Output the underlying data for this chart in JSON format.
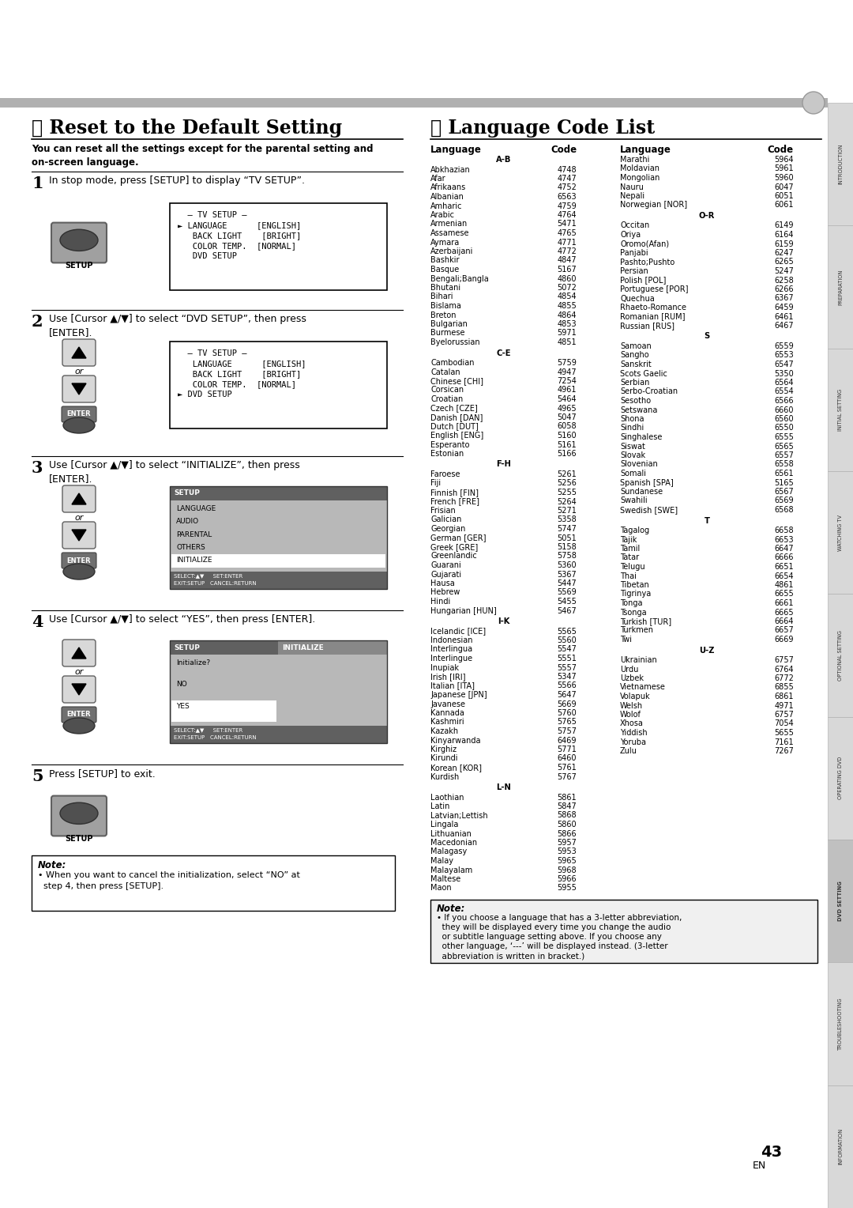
{
  "bg_color": "#ffffff",
  "sidebar_labels": [
    "INTRODUCTION",
    "PREPARATION",
    "INITIAL SETTING",
    "WATCHING TV",
    "OPTIONAL SETTING",
    "OPERATING DVD",
    "DVD SETTING",
    "TROUBLESHOOTING",
    "INFORMATION"
  ],
  "left_section_title": "☑ Reset to the Default Setting",
  "left_subtitle": "You can reset all the settings except for the parental setting and\non-screen language.",
  "right_section_title": "☑ Language Code List",
  "step1_text": "In stop mode, press [SETUP] to display “TV SETUP”.",
  "step2_text": "Use [Cursor ▲/▼] to select “DVD SETUP”, then press\n[ENTER].",
  "step3_text": "Use [Cursor ▲/▼] to select “INITIALIZE”, then press\n[ENTER].",
  "step4_text": "Use [Cursor ▲/▼] to select “YES”, then press [ENTER].",
  "step5_text": "Press [SETUP] to exit.",
  "screen1": [
    "  – TV SETUP –",
    "► LANGUAGE      [ENGLISH]",
    "   BACK LIGHT    [BRIGHT]",
    "   COLOR TEMP.  [NORMAL]",
    "   DVD SETUP"
  ],
  "screen2": [
    "  – TV SETUP –",
    "   LANGUAGE      [ENGLISH]",
    "   BACK LIGHT    [BRIGHT]",
    "   COLOR TEMP.  [NORMAL]",
    "► DVD SETUP"
  ],
  "screen3_title": "SETUP",
  "screen3_items": [
    "LANGUAGE",
    "AUDIO",
    "PARENTAL",
    "OTHERS",
    "INITIALIZE"
  ],
  "screen3_highlight": 4,
  "screen3_bottom": [
    "SELECT:▲▼     SET:ENTER",
    "EXIT:SETUP   CANCEL:RETURN"
  ],
  "screen4_header": [
    "SETUP",
    "INITIALIZE"
  ],
  "screen4_items": [
    "Initialize?",
    "NO",
    "YES"
  ],
  "screen4_highlight": 2,
  "screen4_bottom": [
    "SELECT:▲▼     SET:ENTER",
    "EXIT:SETUP   CANCEL:RETURN"
  ],
  "note_left": "Note:\n• When you want to cancel the initialization, select “NO” at\n  step 4, then press [SETUP].",
  "lang_header_left": "Language",
  "lang_header_code": "Code",
  "lang_ab_label": "A-B",
  "lang_ce_label": "C-E",
  "lang_fh_label": "F-H",
  "lang_ik_label": "I-K",
  "lang_ln_label": "L-N",
  "lang_or_label": "O-R",
  "lang_s_label": "S",
  "lang_t_label": "T",
  "lang_uz_label": "U-Z",
  "languages_ab": [
    [
      "Abkhazian",
      "4748"
    ],
    [
      "Afar",
      "4747"
    ],
    [
      "Afrikaans",
      "4752"
    ],
    [
      "Albanian",
      "6563"
    ],
    [
      "Amharic",
      "4759"
    ],
    [
      "Arabic",
      "4764"
    ],
    [
      "Armenian",
      "5471"
    ],
    [
      "Assamese",
      "4765"
    ],
    [
      "Aymara",
      "4771"
    ],
    [
      "Azerbaijani",
      "4772"
    ],
    [
      "Bashkir",
      "4847"
    ],
    [
      "Basque",
      "5167"
    ],
    [
      "Bengali;Bangla",
      "4860"
    ],
    [
      "Bhutani",
      "5072"
    ],
    [
      "Bihari",
      "4854"
    ],
    [
      "Bislama",
      "4855"
    ],
    [
      "Breton",
      "4864"
    ],
    [
      "Bulgarian",
      "4853"
    ],
    [
      "Burmese",
      "5971"
    ],
    [
      "Byelorussian",
      "4851"
    ]
  ],
  "languages_ce": [
    [
      "Cambodian",
      "5759"
    ],
    [
      "Catalan",
      "4947"
    ],
    [
      "Chinese [CHI]",
      "7254"
    ],
    [
      "Corsican",
      "4961"
    ],
    [
      "Croatian",
      "5464"
    ],
    [
      "Czech [CZE]",
      "4965"
    ],
    [
      "Danish [DAN]",
      "5047"
    ],
    [
      "Dutch [DUT]",
      "6058"
    ],
    [
      "English [ENG]",
      "5160"
    ],
    [
      "Esperanto",
      "5161"
    ],
    [
      "Estonian",
      "5166"
    ]
  ],
  "languages_fh": [
    [
      "Faroese",
      "5261"
    ],
    [
      "Fiji",
      "5256"
    ],
    [
      "Finnish [FIN]",
      "5255"
    ],
    [
      "French [FRE]",
      "5264"
    ],
    [
      "Frisian",
      "5271"
    ],
    [
      "Galician",
      "5358"
    ],
    [
      "Georgian",
      "5747"
    ],
    [
      "German [GER]",
      "5051"
    ],
    [
      "Greek [GRE]",
      "5158"
    ],
    [
      "Greenlandic",
      "5758"
    ],
    [
      "Guarani",
      "5360"
    ],
    [
      "Gujarati",
      "5367"
    ],
    [
      "Hausa",
      "5447"
    ],
    [
      "Hebrew",
      "5569"
    ],
    [
      "Hindi",
      "5455"
    ],
    [
      "Hungarian [HUN]",
      "5467"
    ]
  ],
  "languages_ik": [
    [
      "Icelandic [ICE]",
      "5565"
    ],
    [
      "Indonesian",
      "5560"
    ],
    [
      "Interlingua",
      "5547"
    ],
    [
      "Interlingue",
      "5551"
    ],
    [
      "Inupiak",
      "5557"
    ],
    [
      "Irish [IRI]",
      "5347"
    ],
    [
      "Italian [ITA]",
      "5566"
    ],
    [
      "Japanese [JPN]",
      "5647"
    ],
    [
      "Javanese",
      "5669"
    ],
    [
      "Kannada",
      "5760"
    ],
    [
      "Kashmiri",
      "5765"
    ],
    [
      "Kazakh",
      "5757"
    ],
    [
      "Kinyarwanda",
      "6469"
    ],
    [
      "Kirghiz",
      "5771"
    ],
    [
      "Kirundi",
      "6460"
    ],
    [
      "Korean [KOR]",
      "5761"
    ],
    [
      "Kurdish",
      "5767"
    ]
  ],
  "languages_ln": [
    [
      "Laothian",
      "5861"
    ],
    [
      "Latin",
      "5847"
    ],
    [
      "Latvian;Lettish",
      "5868"
    ],
    [
      "Lingala",
      "5860"
    ],
    [
      "Lithuanian",
      "5866"
    ],
    [
      "Macedonian",
      "5957"
    ],
    [
      "Malagasy",
      "5953"
    ],
    [
      "Malay",
      "5965"
    ],
    [
      "Malayalam",
      "5968"
    ],
    [
      "Maltese",
      "5966"
    ],
    [
      "Maon",
      "5955"
    ]
  ],
  "languages_mr": [
    [
      "Marathi",
      "5964"
    ],
    [
      "Moldavian",
      "5961"
    ],
    [
      "Mongolian",
      "5960"
    ],
    [
      "Nauru",
      "6047"
    ],
    [
      "Nepali",
      "6051"
    ],
    [
      "Norwegian [NOR]",
      "6061"
    ]
  ],
  "languages_or": [
    [
      "Occitan",
      "6149"
    ],
    [
      "Oriya",
      "6164"
    ],
    [
      "Oromo(Afan)",
      "6159"
    ],
    [
      "Panjabi",
      "6247"
    ],
    [
      "Pashto;Pushto",
      "6265"
    ],
    [
      "Persian",
      "5247"
    ],
    [
      "Polish [POL]",
      "6258"
    ],
    [
      "Portuguese [POR]",
      "6266"
    ],
    [
      "Quechua",
      "6367"
    ],
    [
      "Rhaeto-Romance",
      "6459"
    ],
    [
      "Romanian [RUM]",
      "6461"
    ],
    [
      "Russian [RUS]",
      "6467"
    ]
  ],
  "languages_s": [
    [
      "Samoan",
      "6559"
    ],
    [
      "Sangho",
      "6553"
    ],
    [
      "Sanskrit",
      "6547"
    ],
    [
      "Scots Gaelic",
      "5350"
    ],
    [
      "Serbian",
      "6564"
    ],
    [
      "Serbo-Croatian",
      "6554"
    ],
    [
      "Sesotho",
      "6566"
    ],
    [
      "Setswana",
      "6660"
    ],
    [
      "Shona",
      "6560"
    ],
    [
      "Sindhi",
      "6550"
    ],
    [
      "Singhalese",
      "6555"
    ],
    [
      "Siswat",
      "6565"
    ],
    [
      "Slovak",
      "6557"
    ],
    [
      "Slovenian",
      "6558"
    ],
    [
      "Somali",
      "6561"
    ],
    [
      "Spanish [SPA]",
      "5165"
    ],
    [
      "Sundanese",
      "6567"
    ],
    [
      "Swahili",
      "6569"
    ],
    [
      "Swedish [SWE]",
      "6568"
    ]
  ],
  "languages_t": [
    [
      "Tagalog",
      "6658"
    ],
    [
      "Tajik",
      "6653"
    ],
    [
      "Tamil",
      "6647"
    ],
    [
      "Tatar",
      "6666"
    ],
    [
      "Telugu",
      "6651"
    ],
    [
      "Thai",
      "6654"
    ],
    [
      "Tibetan",
      "4861"
    ],
    [
      "Tigrinya",
      "6655"
    ],
    [
      "Tonga",
      "6661"
    ],
    [
      "Tsonga",
      "6665"
    ],
    [
      "Turkish [TUR]",
      "6664"
    ],
    [
      "Turkmen",
      "6657"
    ],
    [
      "Twi",
      "6669"
    ]
  ],
  "languages_uz": [
    [
      "Ukrainian",
      "6757"
    ],
    [
      "Urdu",
      "6764"
    ],
    [
      "Uzbek",
      "6772"
    ],
    [
      "Vietnamese",
      "6855"
    ],
    [
      "Volapuk",
      "6861"
    ],
    [
      "Welsh",
      "4971"
    ],
    [
      "Wolof",
      "6757"
    ],
    [
      "Xhosa",
      "7054"
    ],
    [
      "Yiddish",
      "5655"
    ],
    [
      "Yoruba",
      "7161"
    ],
    [
      "Zulu",
      "7267"
    ]
  ],
  "bottom_note": "Note:\n• If you choose a language that has a 3-letter abbreviation,\n  they will be displayed every time you change the audio\n  or subtitle language setting above. If you choose any\n  other language, ‘---’ will be displayed instead. (3-letter\n  abbreviation is written in bracket.)",
  "page_num": "43"
}
